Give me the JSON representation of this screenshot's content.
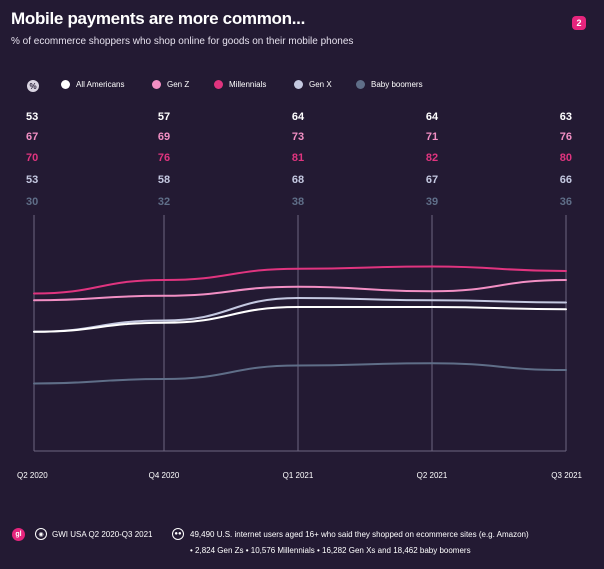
{
  "header": {
    "title": "Mobile payments are more common...",
    "subtitle": "% of ecommerce shoppers who shop online for goods on their mobile phones",
    "page_number": "2"
  },
  "legend": {
    "percent_symbol": "%",
    "items": [
      {
        "label": "All Americans",
        "color": "#ffffff"
      },
      {
        "label": "Gen Z",
        "color": "#f28fc4"
      },
      {
        "label": "Millennials",
        "color": "#e0347f"
      },
      {
        "label": "Gen X",
        "color": "#c4c8e0"
      },
      {
        "label": "Baby boomers",
        "color": "#5f6e88"
      }
    ]
  },
  "chart_data": {
    "type": "line",
    "title": "Mobile payments are more common...",
    "subtitle": "% of ecommerce shoppers who shop online for goods on their mobile phones",
    "xlabel": "",
    "ylabel": "%",
    "categories": [
      "Q2 2020",
      "Q4 2020",
      "Q1 2021",
      "Q2 2021",
      "Q3 2021"
    ],
    "ylim": [
      0,
      100
    ],
    "grid": "vertical",
    "legend_position": "top",
    "series": [
      {
        "name": "All Americans",
        "color": "#ffffff",
        "values": [
          53,
          57,
          64,
          64,
          63
        ]
      },
      {
        "name": "Gen Z",
        "color": "#f28fc4",
        "values": [
          67,
          69,
          73,
          71,
          76
        ]
      },
      {
        "name": "Millennials",
        "color": "#e0347f",
        "values": [
          70,
          76,
          81,
          82,
          80
        ]
      },
      {
        "name": "Gen X",
        "color": "#c4c8e0",
        "values": [
          53,
          58,
          68,
          67,
          66
        ]
      },
      {
        "name": "Baby boomers",
        "color": "#5f6e88",
        "values": [
          30,
          32,
          38,
          39,
          36
        ]
      }
    ]
  },
  "footer": {
    "brand_icon": "gwi-logo-icon",
    "source": "GWI USA Q2 2020-Q3 2021",
    "base_line1": "49,490 U.S. internet users aged 16+ who said they shopped on ecommerce sites (e.g. Amazon)",
    "base_line2": "• 2,824 Gen Zs • 10,576 Millennials • 16,282 Gen Xs and 18,462 baby boomers"
  }
}
